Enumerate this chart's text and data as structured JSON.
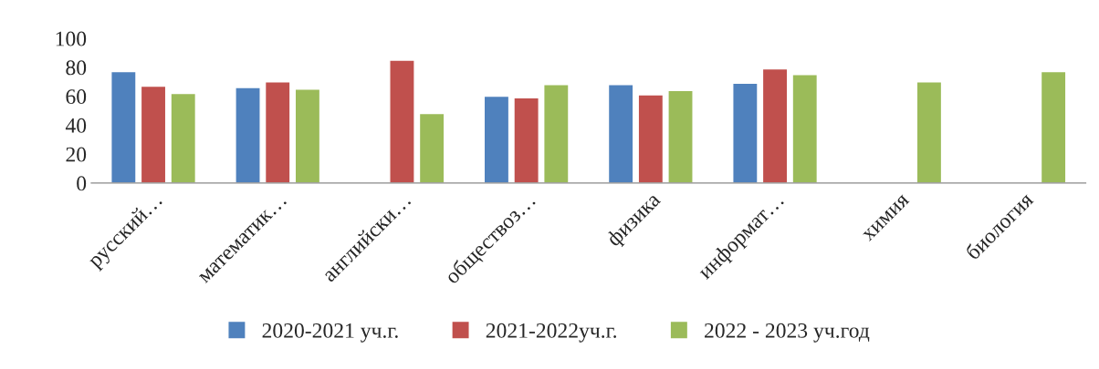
{
  "chart_data": {
    "type": "bar",
    "categories": [
      "русский…",
      "математик…",
      "английски…",
      "обществоз…",
      "физика",
      "информат…",
      "химия",
      "биология"
    ],
    "series": [
      {
        "name": "2020-2021 уч.г.",
        "color": "#4f81bd",
        "values": [
          77,
          66,
          null,
          60,
          68,
          69,
          null,
          null
        ]
      },
      {
        "name": "2021-2022уч.г.",
        "color": "#c0504d",
        "values": [
          67,
          70,
          85,
          59,
          61,
          79,
          null,
          null
        ]
      },
      {
        "name": "2022 - 2023 уч.год",
        "color": "#9bbb59",
        "values": [
          62,
          65,
          48,
          68,
          64,
          75,
          70,
          77
        ]
      }
    ],
    "ylim": [
      0,
      100
    ],
    "yticks": [
      0,
      20,
      40,
      60,
      80,
      100
    ],
    "grid": false,
    "legend": "bottom"
  }
}
